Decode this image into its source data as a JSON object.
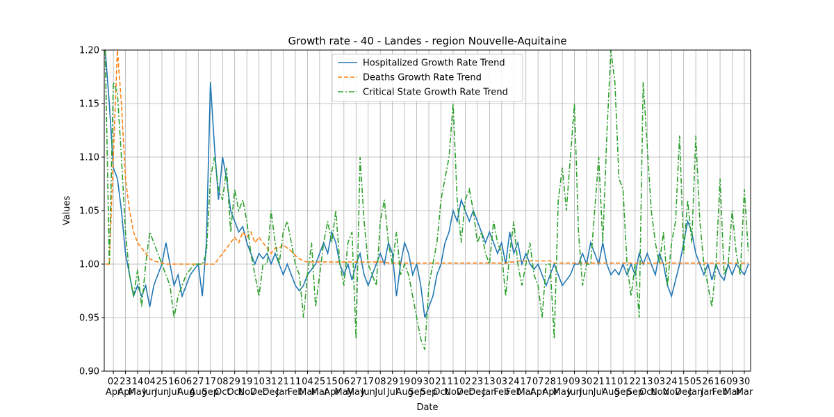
{
  "chart_data": {
    "type": "line",
    "title": "Growth rate - 40 - Landes - region Nouvelle-Aquitaine",
    "xlabel": "Date",
    "ylabel": "Values",
    "categories": [
      null,
      null,
      "02\nApr",
      null,
      null,
      "23\nApr",
      null,
      null,
      "14\nMay",
      null,
      null,
      "04\nJun",
      null,
      null,
      "25\nJun",
      null,
      null,
      "16\nJul",
      null,
      null,
      "06\nAug",
      null,
      null,
      "27\nAug",
      null,
      null,
      "17\nSep",
      null,
      null,
      "08\nOct",
      null,
      null,
      "29\nOct",
      null,
      null,
      "19\nNov",
      null,
      null,
      "10\nDec",
      null,
      null,
      "31\nDec",
      null,
      null,
      "21\nJan",
      null,
      null,
      "11\nFeb",
      null,
      null,
      "04\nMar",
      null,
      null,
      "25\nMar",
      null,
      null,
      "15\nApr",
      null,
      null,
      "06\nMay",
      null,
      null,
      "27\nMay",
      null,
      null,
      "17\nJun",
      null,
      null,
      "08\nJul",
      null,
      null,
      "29\nJul",
      null,
      null,
      "19\nAug",
      null,
      null,
      "09\nSep",
      null,
      null,
      "30\nSep",
      null,
      null,
      "21\nOct",
      null,
      null,
      "11\nNov",
      null,
      null,
      "02\nDec",
      null,
      null,
      "23\nDec",
      null,
      null,
      "13\nJan",
      null,
      null,
      "03\nFeb",
      null,
      null,
      "24\nFeb",
      null,
      null,
      "17\nMar",
      null,
      null,
      "07\nApr",
      null,
      null,
      "28\nApr",
      null,
      null,
      "19\nMay",
      null,
      null,
      "09\nJun",
      null,
      null,
      "30\nJun",
      null,
      null,
      "21\nJul",
      null,
      null,
      "11\nAug",
      null,
      null,
      "01\nSep",
      null,
      null,
      "22\nSep",
      null,
      null,
      "13\nOct",
      null,
      null,
      "03\nNov",
      null,
      null,
      "24\nNov",
      null,
      null,
      "15\nDec",
      null,
      null,
      "05\nJan",
      null,
      null,
      "26\nJan",
      null,
      null,
      "16\nFeb",
      null,
      null,
      "09\nMar",
      null,
      null,
      "30\nMar",
      null
    ],
    "series": [
      {
        "name": "Hospitalized Growth Rate Trend",
        "color": "#1f77b4",
        "linestyle": "solid",
        "values": [
          1.2,
          1.15,
          1.09,
          1.08,
          1.05,
          1.01,
          0.99,
          0.97,
          0.98,
          0.97,
          0.98,
          0.96,
          0.98,
          0.99,
          1.0,
          1.02,
          1.0,
          0.98,
          0.99,
          0.97,
          0.98,
          0.99,
          0.995,
          1.0,
          0.97,
          1.02,
          1.17,
          1.11,
          1.06,
          1.1,
          1.08,
          1.05,
          1.04,
          1.03,
          1.035,
          1.02,
          1.01,
          1.0,
          1.01,
          1.005,
          1.01,
          1.0,
          1.01,
          1.0,
          0.99,
          1.0,
          0.99,
          0.98,
          0.975,
          0.98,
          0.99,
          0.995,
          1.0,
          1.01,
          1.02,
          1.01,
          1.03,
          1.02,
          1.0,
          0.99,
          1.0,
          0.985,
          1.0,
          1.01,
          0.99,
          0.98,
          0.99,
          1.0,
          1.01,
          1.0,
          1.02,
          1.01,
          0.97,
          1.0,
          1.02,
          1.01,
          0.99,
          1.0,
          0.98,
          0.95,
          0.96,
          0.97,
          0.99,
          1.0,
          1.02,
          1.03,
          1.05,
          1.04,
          1.06,
          1.05,
          1.04,
          1.05,
          1.04,
          1.03,
          1.02,
          1.03,
          1.02,
          1.01,
          1.02,
          1.0,
          1.03,
          1.01,
          1.02,
          1.0,
          1.01,
          1.0,
          0.995,
          1.0,
          0.99,
          0.98,
          0.99,
          1.0,
          0.99,
          0.98,
          0.985,
          0.99,
          1.0,
          1.0,
          1.01,
          1.0,
          1.02,
          1.01,
          1.0,
          1.02,
          1.0,
          0.99,
          0.995,
          0.99,
          1.0,
          0.99,
          1.0,
          0.99,
          1.01,
          1.0,
          1.01,
          1.0,
          0.99,
          1.01,
          1.0,
          0.98,
          0.97,
          0.985,
          1.0,
          1.02,
          1.04,
          1.03,
          1.01,
          1.0,
          0.99,
          1.0,
          0.985,
          1.0,
          0.99,
          0.985,
          1.0,
          0.99,
          1.0,
          0.995,
          0.99,
          1.0
        ]
      },
      {
        "name": "Deaths Growth Rate Trend",
        "color": "#ff7f0e",
        "linestyle": "dashed",
        "values": [
          1.0,
          1.0,
          1.1,
          1.2,
          1.15,
          1.08,
          1.05,
          1.03,
          1.02,
          1.015,
          1.01,
          1.005,
          1.003,
          1.002,
          1.001,
          1.0,
          1.0,
          1.0,
          1.0,
          1.0,
          1.0,
          1.0,
          1.0,
          1.0,
          1.0,
          1.0,
          1.0,
          1.0,
          1.005,
          1.01,
          1.015,
          1.02,
          1.025,
          1.02,
          1.03,
          1.025,
          1.03,
          1.02,
          1.025,
          1.02,
          1.015,
          1.01,
          1.015,
          1.015,
          1.018,
          1.015,
          1.012,
          1.008,
          1.005,
          1.003,
          1.002,
          1.002,
          1.002,
          1.002,
          1.002,
          1.002,
          1.002,
          1.002,
          1.002,
          1.002,
          1.002,
          1.002,
          1.002,
          1.002,
          1.002,
          1.002,
          1.002,
          1.002,
          1.002,
          1.002,
          1.001,
          1.001,
          1.001,
          1.001,
          1.001,
          1.001,
          1.001,
          1.001,
          1.001,
          1.001,
          1.001,
          1.001,
          1.001,
          1.001,
          1.001,
          1.001,
          1.001,
          1.001,
          1.001,
          1.001,
          1.001,
          1.001,
          1.001,
          1.001,
          1.001,
          1.001,
          1.001,
          1.001,
          1.001,
          1.001,
          1.002,
          1.002,
          1.003,
          1.003,
          1.003,
          1.003,
          1.003,
          1.003,
          1.003,
          1.003,
          1.003,
          1.001,
          1.001,
          1.001,
          1.001,
          1.001,
          1.001,
          1.001,
          1.001,
          1.001,
          1.001,
          1.001,
          1.001,
          1.001,
          1.001,
          1.001,
          1.001,
          1.001,
          1.001,
          1.001,
          1.001,
          1.001,
          1.001,
          1.001,
          1.001,
          1.001,
          1.001,
          1.001,
          1.001,
          1.001,
          1.001,
          1.001,
          1.001,
          1.001,
          1.001,
          1.001,
          1.001,
          1.001,
          1.001,
          1.001,
          1.001,
          1.001,
          1.001,
          1.001,
          1.001,
          1.001,
          1.001,
          1.001,
          1.001,
          1.001
        ]
      },
      {
        "name": "Critical State Growth Rate Trend",
        "color": "#2ca02c",
        "linestyle": "dashdot",
        "values": [
          1.2,
          1.0,
          1.17,
          1.16,
          1.1,
          1.03,
          0.99,
          0.97,
          0.995,
          0.96,
          1.0,
          1.03,
          1.02,
          1.01,
          1.0,
          0.99,
          0.98,
          0.95,
          0.97,
          0.98,
          0.99,
          0.995,
          1.0,
          1.0,
          1.0,
          1.01,
          1.08,
          1.1,
          1.07,
          1.06,
          1.09,
          1.03,
          1.07,
          1.05,
          1.06,
          1.04,
          1.01,
          0.99,
          0.97,
          1.0,
          1.0,
          1.05,
          1.02,
          1.0,
          1.03,
          1.04,
          1.02,
          1.0,
          0.99,
          0.95,
          0.99,
          1.02,
          0.96,
          0.99,
          1.02,
          1.04,
          1.02,
          1.05,
          1.0,
          0.98,
          1.02,
          1.03,
          0.93,
          1.1,
          1.04,
          1.0,
          0.99,
          0.98,
          1.04,
          1.06,
          1.02,
          1.0,
          1.03,
          0.99,
          1.0,
          0.99,
          0.97,
          0.95,
          0.93,
          0.92,
          0.98,
          1.0,
          1.02,
          1.06,
          1.08,
          1.1,
          1.15,
          1.06,
          1.02,
          1.06,
          1.07,
          1.05,
          1.02,
          1.03,
          1.01,
          1.0,
          1.04,
          1.02,
          1.01,
          0.97,
          1.01,
          1.04,
          1.0,
          0.98,
          1.0,
          1.02,
          0.99,
          0.98,
          0.95,
          1.0,
          1.0,
          0.93,
          1.06,
          1.09,
          1.05,
          1.1,
          1.15,
          1.03,
          0.98,
          1.0,
          1.0,
          1.05,
          1.1,
          1.02,
          1.12,
          1.2,
          1.17,
          1.08,
          1.07,
          1.0,
          0.97,
          1.0,
          0.95,
          1.17,
          1.11,
          1.05,
          1.02,
          1.0,
          1.03,
          0.98,
          1.02,
          1.04,
          1.12,
          1.01,
          1.06,
          1.02,
          1.12,
          1.04,
          1.0,
          0.98,
          0.96,
          1.0,
          1.08,
          0.99,
          1.0,
          1.05,
          1.01,
          0.99,
          1.07,
          1.01
        ]
      }
    ],
    "ylim": [
      0.9,
      1.2
    ],
    "yticks": [
      {
        "value": 0.9,
        "label": "0.90"
      },
      {
        "value": 0.95,
        "label": "0.95"
      },
      {
        "value": 1.0,
        "label": "1.00"
      },
      {
        "value": 1.05,
        "label": "1.05"
      },
      {
        "value": 1.1,
        "label": "1.10"
      },
      {
        "value": 1.15,
        "label": "1.15"
      },
      {
        "value": 1.2,
        "label": "1.20"
      }
    ],
    "grid": true,
    "legend": "upper center"
  }
}
